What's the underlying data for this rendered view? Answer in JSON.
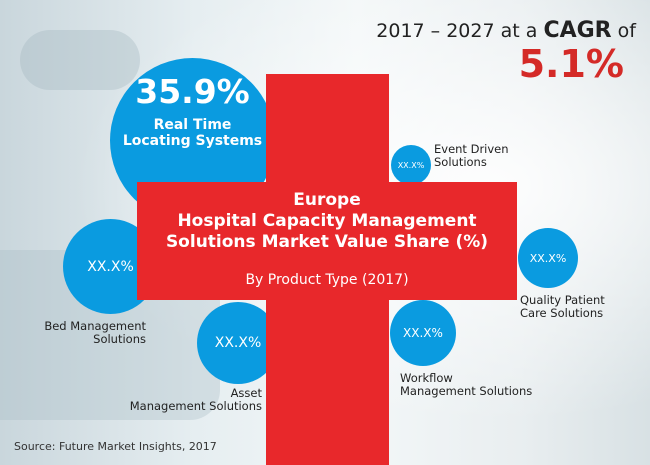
{
  "headline": {
    "period": "2017 – 2027",
    "at_a": "at a",
    "cagr": "CAGR",
    "of": "of",
    "value": "5.1%"
  },
  "title": {
    "lines": [
      "Europe",
      "Hospital Capacity Management",
      "Solutions Market Value Share (%)"
    ],
    "subtitle": "By Product Type (2017)"
  },
  "segments": {
    "rtls": {
      "value": "35.9%",
      "label_1": "Real Time",
      "label_2": "Locating Systems"
    },
    "event": {
      "value": "XX.X%",
      "label_1": "Event Driven",
      "label_2": "Solutions"
    },
    "quality": {
      "value": "XX.X%",
      "label_1": "Quality Patient",
      "label_2": "Care Solutions"
    },
    "bed": {
      "value": "XX.X%",
      "label_1": "Bed Management",
      "label_2": "Solutions"
    },
    "asset": {
      "value": "XX.X%",
      "label_1": "Asset",
      "label_2": "Management Solutions"
    },
    "workflow": {
      "value": "XX.X%",
      "label_1": "Workflow",
      "label_2": "Management Solutions"
    }
  },
  "source": "Source: Future Market Insights, 2017",
  "colors": {
    "cross": "#e8282b",
    "circle": "#0a9be0",
    "cagr": "#d42a27"
  }
}
